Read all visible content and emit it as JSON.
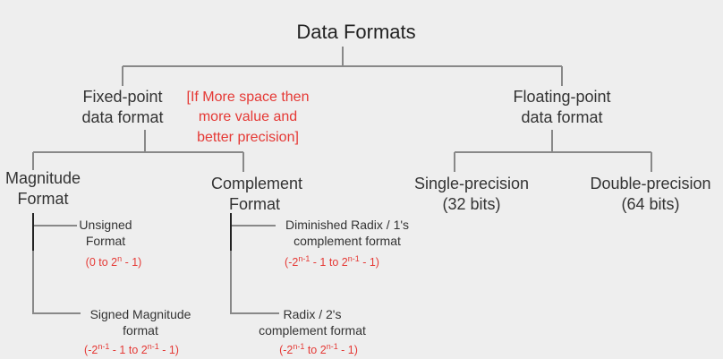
{
  "diagram": {
    "root": "Data Formats",
    "fixed_point": {
      "line1": "Fixed-point",
      "line2": "data format"
    },
    "fixed_note": [
      "[If More space then",
      "more value and",
      "better precision]"
    ],
    "floating_point": {
      "line1": "Floating-point",
      "line2": "data format"
    },
    "magnitude": {
      "line1": "Magnitude",
      "line2": "Format"
    },
    "complement": {
      "line1": "Complement",
      "line2": "Format"
    },
    "single": {
      "line1": "Single-precision",
      "line2": "(32 bits)"
    },
    "double": {
      "line1": "Double-precision",
      "line2": "(64 bits)"
    },
    "unsigned": {
      "line1": "Unsigned",
      "line2": "Format",
      "range": {
        "a": "(0 to 2",
        "b": "n",
        "c": " - 1)"
      }
    },
    "signed_magnitude": {
      "line1": "Signed Magnitude",
      "line2": "format",
      "range": {
        "a": "(-2",
        "b": "n-1",
        "c": " - 1 to 2",
        "d": "n-1",
        "e": " - 1)"
      }
    },
    "diminished_radix": {
      "line1": "Diminished Radix / 1's",
      "line2": "complement format",
      "range": {
        "a": "(-2",
        "b": "n-1",
        "c": " - 1 to 2",
        "d": "n-1",
        "e": " - 1)"
      }
    },
    "radix": {
      "line1": "Radix / 2's",
      "line2": "complement format",
      "range": {
        "a": "(-2",
        "b": "n-1",
        "c": " to 2",
        "d": "n-1",
        "e": " - 1)"
      }
    }
  }
}
